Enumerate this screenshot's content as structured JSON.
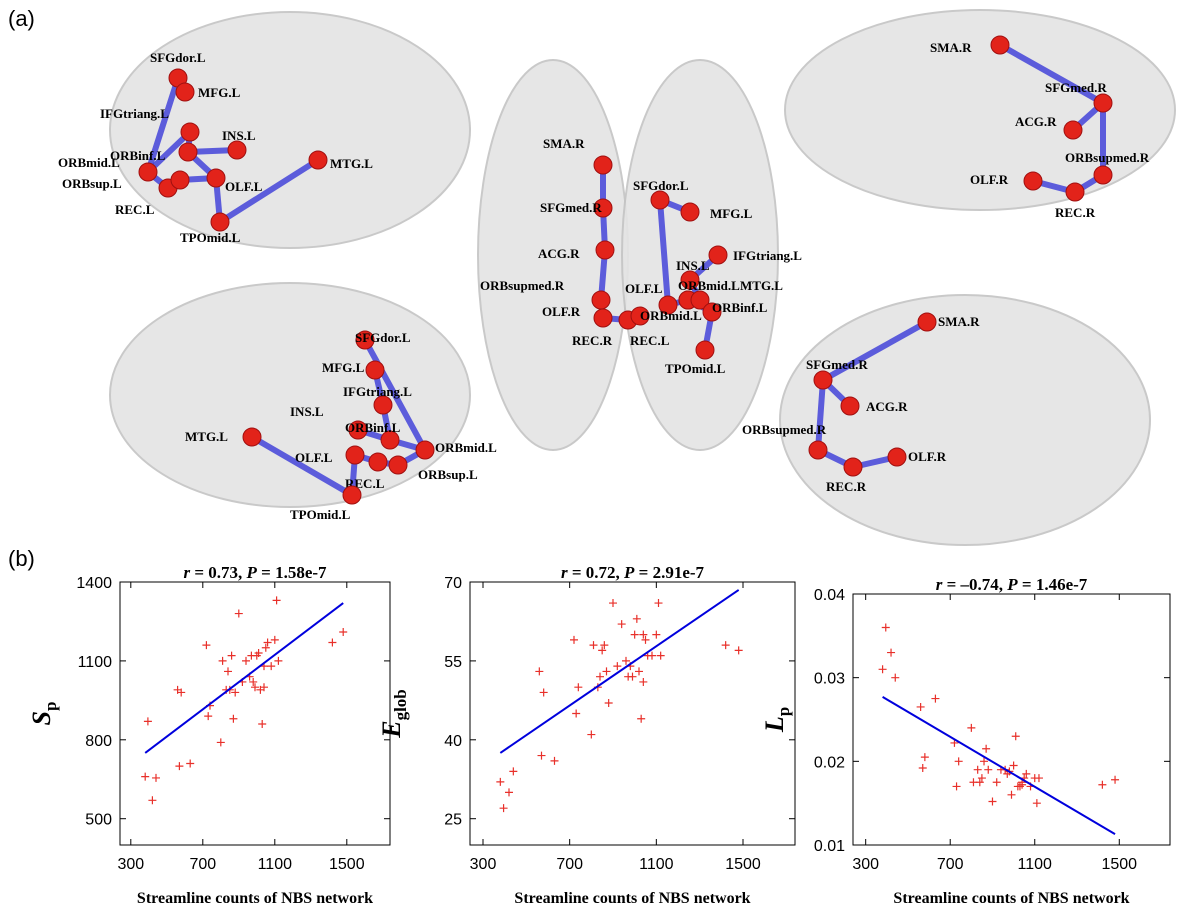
{
  "panel_labels": [
    "(a)",
    "(b)"
  ],
  "brain_views": [
    {
      "nodes": [
        "SFGdor.L",
        "MFG.L",
        "IFGtriang.L",
        "INS.L",
        "ORBmid.L",
        "ORBinf.L",
        "ORBsup.L",
        "REC.L",
        "OLF.L",
        "MTG.L",
        "TPOmid.L"
      ]
    },
    {
      "nodes": [
        "SMA.R",
        "SFGmed.R",
        "ACG.R",
        "ORBsupmed.R",
        "OLF.R",
        "REC.R"
      ]
    },
    {
      "nodes": [
        "SMA.R",
        "SFGmed.R",
        "ACG.R",
        "ORBsupmed.R",
        "OLF.R",
        "REC.R",
        "REC.L",
        "SFGdor.L",
        "MFG.L",
        "IFGtriang.L",
        "INS.L",
        "OLF.L",
        "ORBmid.L",
        "ORBmid.L",
        "MTG.L",
        "ORBinf.L",
        "TPOmid.L"
      ]
    },
    {
      "nodes": [
        "SFGdor.L",
        "MFG.L",
        "IFGtriang.L",
        "INS.L",
        "ORBinf.L",
        "ORBmid.L",
        "OLF.L",
        "ORBsup.L",
        "REC.L",
        "MTG.L",
        "TPOmid.L"
      ]
    },
    {
      "nodes": [
        "SMA.R",
        "SFGmed.R",
        "ACG.R",
        "ORBsupmed.R",
        "REC.R",
        "OLF.R"
      ]
    }
  ],
  "chart_data": [
    {
      "type": "scatter",
      "annotation": [
        "r",
        " = 0.73, ",
        "P",
        " = 1.58e-7"
      ],
      "ylabel": {
        "main": "S",
        "sub": "p"
      },
      "xlabel": "Streamline counts of NBS network",
      "xlim": [
        240,
        1740
      ],
      "xticks": [
        300,
        700,
        1100,
        1500
      ],
      "ylim": [
        400,
        1400
      ],
      "yticks": [
        500,
        800,
        1100,
        1400
      ],
      "points": {
        "color": "#e8302a",
        "x": [
          380,
          395,
          420,
          440,
          560,
          580,
          570,
          630,
          720,
          730,
          740,
          800,
          810,
          830,
          840,
          850,
          860,
          870,
          880,
          900,
          920,
          940,
          960,
          970,
          980,
          990,
          1000,
          1010,
          1030,
          1020,
          1040,
          1050,
          1060,
          1080,
          1100,
          1110,
          1120,
          1420,
          1480,
          1040
        ],
        "y": [
          660,
          870,
          570,
          655,
          990,
          980,
          700,
          710,
          1160,
          890,
          930,
          790,
          1100,
          990,
          1060,
          990,
          1120,
          880,
          980,
          1280,
          1020,
          1100,
          1040,
          1120,
          1020,
          1000,
          1120,
          1130,
          860,
          990,
          1080,
          1150,
          1170,
          1080,
          1180,
          1330,
          1100,
          1170,
          1210,
          1000
        ]
      },
      "fit": {
        "color": "#0000dd",
        "x": [
          380,
          1480
        ],
        "y": [
          750,
          1320
        ]
      }
    },
    {
      "type": "scatter",
      "annotation": [
        "r",
        " = 0.72, ",
        "P",
        " = 2.91e-7"
      ],
      "ylabel": {
        "main": "E",
        "sub": "glob"
      },
      "xlabel": "Streamline counts of NBS network",
      "xlim": [
        240,
        1740
      ],
      "xticks": [
        300,
        700,
        1100,
        1500
      ],
      "ylim": [
        20,
        70
      ],
      "yticks": [
        25,
        40,
        55,
        70
      ],
      "points": {
        "color": "#e8302a",
        "x": [
          380,
          395,
          420,
          440,
          560,
          580,
          570,
          630,
          720,
          730,
          740,
          800,
          810,
          830,
          840,
          850,
          860,
          870,
          880,
          900,
          920,
          940,
          960,
          970,
          980,
          990,
          1000,
          1010,
          1030,
          1020,
          1040,
          1050,
          1060,
          1080,
          1100,
          1110,
          1120,
          1420,
          1480,
          1040
        ],
        "y": [
          32,
          27,
          30,
          34,
          53,
          49,
          37,
          36,
          59,
          45,
          50,
          41,
          58,
          50,
          52,
          57,
          58,
          53,
          47,
          66,
          54,
          62,
          55,
          52,
          54,
          52,
          60,
          63,
          44,
          53,
          60,
          59,
          56,
          56,
          60,
          66,
          56,
          58,
          57,
          51
        ]
      },
      "fit": {
        "color": "#0000dd",
        "x": [
          380,
          1480
        ],
        "y": [
          37.5,
          68.5
        ]
      }
    },
    {
      "type": "scatter",
      "annotation": [
        "r",
        " = –0.74, ",
        "P",
        " = 1.46e-7"
      ],
      "ylabel": {
        "main": "L",
        "sub": "p"
      },
      "xlabel": "Streamline counts of NBS network",
      "xlim": [
        240,
        1740
      ],
      "xticks": [
        300,
        700,
        1100,
        1500
      ],
      "ylim": [
        0.01,
        0.04
      ],
      "yticks": [
        0.01,
        0.02,
        0.03,
        0.04
      ],
      "points": {
        "color": "#e8302a",
        "x": [
          380,
          395,
          420,
          440,
          560,
          580,
          570,
          630,
          720,
          730,
          740,
          800,
          810,
          830,
          840,
          850,
          860,
          870,
          880,
          900,
          920,
          940,
          960,
          970,
          980,
          990,
          1000,
          1010,
          1030,
          1020,
          1040,
          1050,
          1060,
          1080,
          1100,
          1110,
          1120,
          1420,
          1480,
          1040
        ],
        "y": [
          0.031,
          0.036,
          0.033,
          0.03,
          0.0265,
          0.0205,
          0.0192,
          0.0275,
          0.0222,
          0.017,
          0.02,
          0.024,
          0.0175,
          0.019,
          0.0175,
          0.018,
          0.02,
          0.0215,
          0.019,
          0.0152,
          0.0175,
          0.019,
          0.019,
          0.0185,
          0.0188,
          0.016,
          0.0195,
          0.023,
          0.017,
          0.017,
          0.0172,
          0.018,
          0.0185,
          0.017,
          0.018,
          0.015,
          0.018,
          0.0172,
          0.0178,
          0.0175
        ]
      },
      "fit": {
        "color": "#0000dd",
        "x": [
          380,
          1480
        ],
        "y": [
          0.0277,
          0.0113
        ]
      }
    }
  ]
}
